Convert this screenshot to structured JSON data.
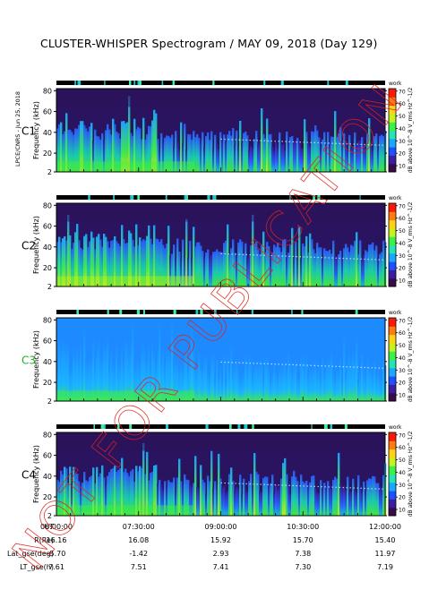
{
  "title": "CLUSTER-WHISPER Spectrogram / MAY 09, 2018 (Day 129)",
  "credit": "LPCE/CNRS - Jun 25, 2018",
  "watermark": "NOT FOR PUBLICATION",
  "chart_data": {
    "type": "heatmap",
    "spacecraft": [
      {
        "name": "C1",
        "label_color": "#000000",
        "status": "working"
      },
      {
        "name": "C2",
        "label_color": "#000000",
        "status": "working"
      },
      {
        "name": "C3",
        "label_color": "#1db31d",
        "status": "working"
      },
      {
        "name": "C4",
        "label_color": "#000000",
        "status": "working"
      }
    ],
    "ylabel": "Frequency (kHz)",
    "yticks": [
      "2",
      "20",
      "40",
      "60",
      "80"
    ],
    "ylim": [
      2,
      82
    ],
    "xlim": [
      "06:00:00",
      "12:00:00"
    ],
    "colorbar": {
      "label": "dB above 10^-8 V_rms Hz^-1/2",
      "ticks": [
        "10",
        "20",
        "30",
        "40",
        "50",
        "60",
        "70"
      ],
      "range": [
        5,
        72
      ],
      "top_marker": "work",
      "colors": [
        "#3a0a4a",
        "#3c1fa0",
        "#1f50ff",
        "#1aa8ff",
        "#25e6b0",
        "#3cf04a",
        "#c8f01e",
        "#ffd21a",
        "#ff7a10",
        "#ff1a08"
      ]
    },
    "ephemeris": {
      "row_labels": [
        "UT",
        "R(Re)",
        "Lat_gse(deg)",
        "LT_gse(h)"
      ],
      "columns": [
        [
          "06:00:00",
          "16.16",
          "-5.70",
          "7.61"
        ],
        [
          "07:30:00",
          "16.08",
          "-1.42",
          "7.51"
        ],
        [
          "09:00:00",
          "15.92",
          "2.93",
          "7.41"
        ],
        [
          "10:30:00",
          "15.70",
          "7.38",
          "7.30"
        ],
        [
          "12:00:00",
          "15.40",
          "11.97",
          "7.19"
        ]
      ]
    }
  }
}
